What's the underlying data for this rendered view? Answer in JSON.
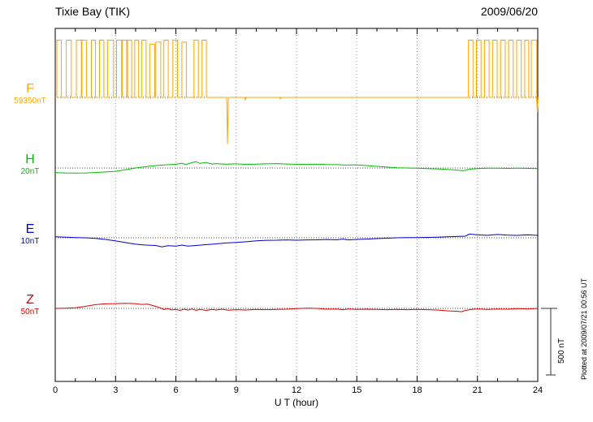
{
  "chart_data": {
    "type": "line",
    "title": "Tixie Bay (TIK)",
    "date": "2009/06/20",
    "xlabel": "U T (hour)",
    "x_range": [
      0,
      24
    ],
    "x_ticks": [
      0,
      3,
      6,
      9,
      12,
      15,
      18,
      21,
      24
    ],
    "grid": "vertical dotted lines every 3 hours, dotted horizontal baseline per component",
    "legend_position": "left",
    "scale_bar": {
      "label": "500 nT",
      "nT": 500
    },
    "footer": "Plotted at 2009/07/21 00:56 UT",
    "series": [
      {
        "name": "F",
        "baseline_label": "59350nT",
        "color": "#FFA500",
        "shape": "square-pulses",
        "pulses": [
          [
            0.08,
            0.3,
            430
          ],
          [
            0.55,
            0.8,
            430
          ],
          [
            1.05,
            1.3,
            430
          ],
          [
            1.32,
            1.55,
            430
          ],
          [
            1.8,
            2.0,
            430
          ],
          [
            2.2,
            2.42,
            430
          ],
          [
            2.6,
            2.9,
            430
          ],
          [
            3.05,
            3.3,
            430
          ],
          [
            3.33,
            3.55,
            430
          ],
          [
            3.6,
            3.8,
            430
          ],
          [
            3.95,
            4.15,
            430
          ],
          [
            4.3,
            4.52,
            430
          ],
          [
            4.7,
            4.95,
            400
          ],
          [
            5.0,
            5.25,
            415
          ],
          [
            5.4,
            5.62,
            430
          ],
          [
            5.85,
            6.08,
            430
          ],
          [
            6.3,
            6.52,
            415
          ],
          [
            6.9,
            7.12,
            430
          ],
          [
            7.3,
            7.52,
            430
          ],
          [
            20.55,
            20.78,
            430
          ],
          [
            20.95,
            21.18,
            430
          ],
          [
            21.35,
            21.58,
            430
          ],
          [
            21.75,
            21.98,
            430
          ],
          [
            22.15,
            22.38,
            430
          ],
          [
            22.55,
            22.78,
            430
          ],
          [
            22.95,
            23.18,
            430
          ],
          [
            23.35,
            23.55,
            430
          ],
          [
            23.68,
            23.95,
            430
          ]
        ],
        "spikes": [
          [
            8.57,
            -350
          ],
          [
            9.45,
            -18
          ],
          [
            11.2,
            -12
          ],
          [
            23.98,
            -115
          ]
        ]
      },
      {
        "name": "H",
        "baseline_label": "20nT",
        "color": "#00BB00",
        "points": [
          [
            0,
            -35
          ],
          [
            0.5,
            -37
          ],
          [
            1,
            -38
          ],
          [
            1.5,
            -37
          ],
          [
            2,
            -34
          ],
          [
            2.5,
            -30
          ],
          [
            3,
            -25
          ],
          [
            3.5,
            -13
          ],
          [
            4,
            0
          ],
          [
            4.5,
            10
          ],
          [
            5,
            18
          ],
          [
            5.5,
            24
          ],
          [
            6,
            28
          ],
          [
            6.3,
            36
          ],
          [
            6.5,
            26
          ],
          [
            6.8,
            40
          ],
          [
            7,
            48
          ],
          [
            7.2,
            34
          ],
          [
            7.5,
            42
          ],
          [
            7.8,
            30
          ],
          [
            8,
            33
          ],
          [
            8.5,
            28
          ],
          [
            9,
            31
          ],
          [
            9.5,
            27
          ],
          [
            10,
            29
          ],
          [
            10.5,
            31
          ],
          [
            11,
            33
          ],
          [
            11.5,
            30
          ],
          [
            12,
            28
          ],
          [
            12.5,
            27
          ],
          [
            13,
            29
          ],
          [
            13.5,
            26
          ],
          [
            14,
            25
          ],
          [
            14.5,
            22
          ],
          [
            15,
            24
          ],
          [
            15.5,
            18
          ],
          [
            16,
            12
          ],
          [
            16.5,
            7
          ],
          [
            17,
            2
          ],
          [
            17.5,
            0
          ],
          [
            18,
            -2
          ],
          [
            18.5,
            -4
          ],
          [
            19,
            -7
          ],
          [
            19.5,
            -11
          ],
          [
            20,
            -16
          ],
          [
            20.3,
            -21
          ],
          [
            20.6,
            -9
          ],
          [
            21,
            -5
          ],
          [
            21.5,
            -2
          ],
          [
            22,
            -1
          ],
          [
            22.5,
            -3
          ],
          [
            23,
            -1
          ],
          [
            23.5,
            -3
          ],
          [
            24,
            -4
          ]
        ]
      },
      {
        "name": "E",
        "baseline_label": "10nT",
        "color": "#0000CC",
        "points": [
          [
            0,
            8
          ],
          [
            0.5,
            5
          ],
          [
            1,
            2
          ],
          [
            1.5,
            0
          ],
          [
            2,
            -5
          ],
          [
            2.5,
            -12
          ],
          [
            3,
            -24
          ],
          [
            3.5,
            -36
          ],
          [
            4,
            -48
          ],
          [
            4.5,
            -55
          ],
          [
            5,
            -58
          ],
          [
            5.3,
            -68
          ],
          [
            5.6,
            -60
          ],
          [
            6,
            -63
          ],
          [
            6.3,
            -55
          ],
          [
            6.6,
            -62
          ],
          [
            7,
            -58
          ],
          [
            7.5,
            -52
          ],
          [
            8,
            -46
          ],
          [
            8.5,
            -39
          ],
          [
            9,
            -35
          ],
          [
            9.5,
            -30
          ],
          [
            10,
            -23
          ],
          [
            10.5,
            -19
          ],
          [
            11,
            -18
          ],
          [
            11.5,
            -16
          ],
          [
            12,
            -18
          ],
          [
            12.5,
            -16
          ],
          [
            13,
            -15
          ],
          [
            13.5,
            -13
          ],
          [
            14,
            -15
          ],
          [
            14.3,
            -10
          ],
          [
            14.6,
            -16
          ],
          [
            15,
            -12
          ],
          [
            15.5,
            -10
          ],
          [
            16,
            -6
          ],
          [
            16.5,
            -3
          ],
          [
            17,
            0
          ],
          [
            17.5,
            2
          ],
          [
            18,
            2
          ],
          [
            18.5,
            3
          ],
          [
            19,
            5
          ],
          [
            19.5,
            8
          ],
          [
            20,
            10
          ],
          [
            20.4,
            12
          ],
          [
            20.6,
            28
          ],
          [
            21,
            22
          ],
          [
            21.5,
            18
          ],
          [
            22,
            25
          ],
          [
            22.5,
            20
          ],
          [
            23,
            18
          ],
          [
            23.5,
            22
          ],
          [
            24,
            18
          ]
        ]
      },
      {
        "name": "Z",
        "baseline_label": "50nT",
        "color": "#DD0000",
        "points": [
          [
            0,
            0
          ],
          [
            0.5,
            2
          ],
          [
            1,
            5
          ],
          [
            1.5,
            15
          ],
          [
            2,
            28
          ],
          [
            2.5,
            34
          ],
          [
            3,
            36
          ],
          [
            3.5,
            38
          ],
          [
            4,
            35
          ],
          [
            4.3,
            30
          ],
          [
            4.6,
            32
          ],
          [
            5,
            15
          ],
          [
            5.2,
            5
          ],
          [
            5.4,
            -8
          ],
          [
            5.6,
            -2
          ],
          [
            5.8,
            -12
          ],
          [
            6,
            -8
          ],
          [
            6.2,
            -15
          ],
          [
            6.4,
            -6
          ],
          [
            6.6,
            -12
          ],
          [
            6.8,
            -5
          ],
          [
            7,
            -14
          ],
          [
            7.2,
            -8
          ],
          [
            7.5,
            -15
          ],
          [
            7.8,
            -8
          ],
          [
            8,
            -12
          ],
          [
            8.3,
            -6
          ],
          [
            8.6,
            -14
          ],
          [
            9,
            -10
          ],
          [
            9.5,
            -12
          ],
          [
            10,
            -8
          ],
          [
            10.5,
            -10
          ],
          [
            11,
            -8
          ],
          [
            11.5,
            -6
          ],
          [
            12,
            -2
          ],
          [
            12.5,
            2
          ],
          [
            13,
            0
          ],
          [
            13.5,
            -6
          ],
          [
            14,
            -4
          ],
          [
            14.3,
            -10
          ],
          [
            14.6,
            -5
          ],
          [
            15,
            -8
          ],
          [
            15.5,
            -6
          ],
          [
            16,
            -8
          ],
          [
            16.5,
            -10
          ],
          [
            17,
            -8
          ],
          [
            17.5,
            -10
          ],
          [
            18,
            -8
          ],
          [
            18.5,
            -10
          ],
          [
            19,
            -12
          ],
          [
            19.5,
            -18
          ],
          [
            20,
            -22
          ],
          [
            20.2,
            -25
          ],
          [
            20.4,
            -15
          ],
          [
            20.7,
            -8
          ],
          [
            21,
            -5
          ],
          [
            21.5,
            -8
          ],
          [
            22,
            -4
          ],
          [
            22.5,
            -6
          ],
          [
            23,
            -2
          ],
          [
            23.5,
            -4
          ],
          [
            24,
            0
          ]
        ]
      }
    ]
  }
}
